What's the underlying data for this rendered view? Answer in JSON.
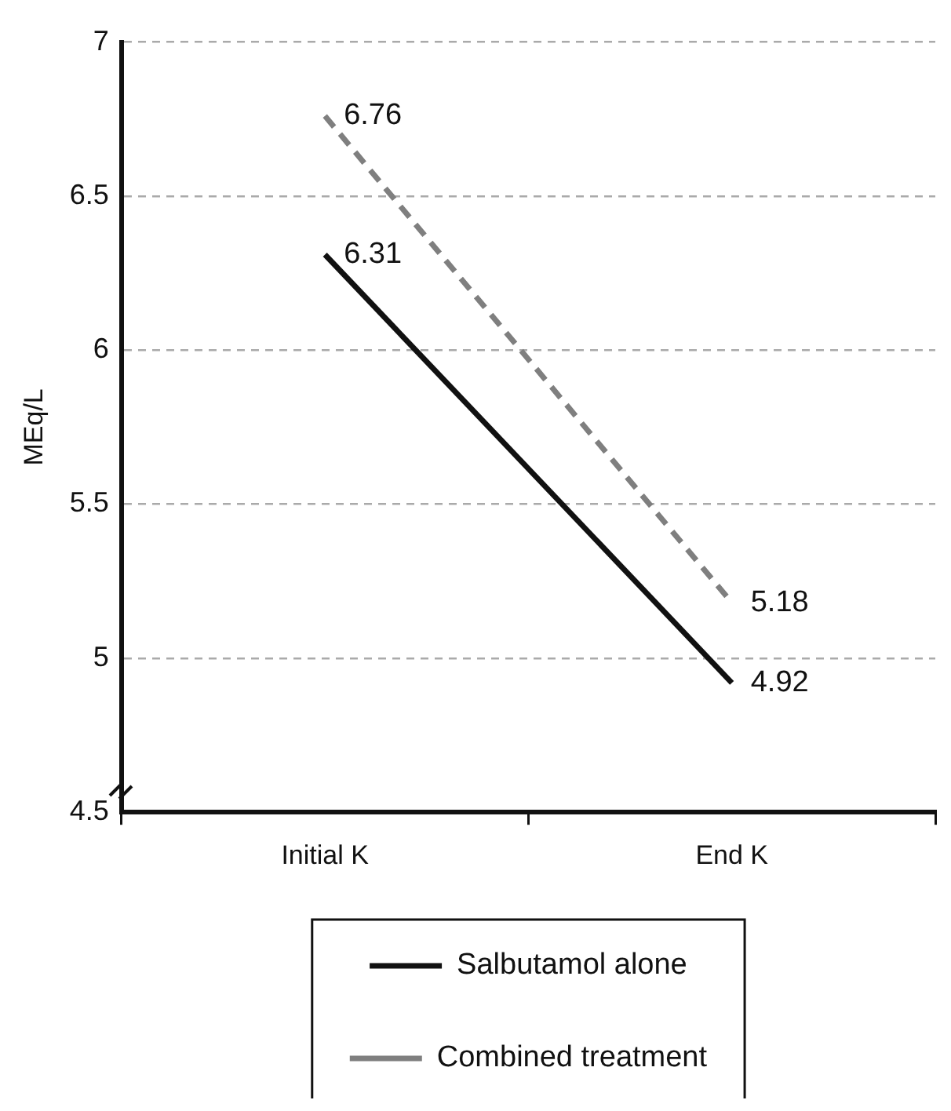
{
  "chart_data": {
    "type": "line",
    "ylabel": "MEq/L",
    "categories": [
      "Initial K",
      "End K"
    ],
    "series": [
      {
        "name": "Salbutamol alone",
        "color": "#111111",
        "values": [
          6.31,
          4.92
        ],
        "line_style": "solid"
      },
      {
        "name": "Combined treatment",
        "color": "#7f7f7f",
        "values": [
          6.76,
          5.18
        ],
        "line_style": "dashed"
      }
    ],
    "ylim": [
      4.5,
      7
    ],
    "yticks": [
      4.5,
      5,
      5.5,
      6,
      6.5,
      7
    ],
    "grid": "y",
    "legend": "bottom",
    "data_labels": true
  }
}
